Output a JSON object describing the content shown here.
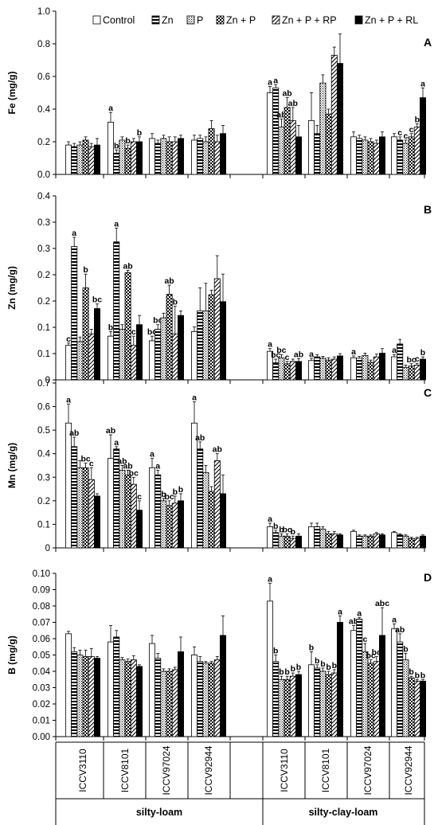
{
  "legend": [
    {
      "name": "Control",
      "pattern": "white"
    },
    {
      "name": "Zn",
      "pattern": "hstripe"
    },
    {
      "name": "P",
      "pattern": "dots"
    },
    {
      "name": "Zn + P",
      "pattern": "checker"
    },
    {
      "name": "Zn + P + RP",
      "pattern": "diag"
    },
    {
      "name": "Zn + P + RL",
      "pattern": "black"
    }
  ],
  "genotypes": [
    "ICCV3110",
    "ICCV8101",
    "ICCV97024",
    "ICCV92944"
  ],
  "soils": [
    "silty-loam",
    "silty-clay-loam"
  ],
  "chart_data": [
    {
      "type": "bar",
      "panel": "A",
      "ylabel": "Fe (mg/g)",
      "ylim": [
        0,
        1.0
      ],
      "yticks": [
        "0.0",
        "0.2",
        "0.4",
        "0.6",
        "0.8",
        "1.0"
      ],
      "series": [
        {
          "name": "Control",
          "values": [
            0.18,
            0.32,
            0.22,
            0.21,
            0.5,
            0.33,
            0.23,
            0.23
          ],
          "err": [
            0.02,
            0.06,
            0.03,
            0.03,
            0.04,
            0.17,
            0.03,
            0.02
          ],
          "labels": [
            "",
            "a",
            "",
            "",
            "a",
            "",
            "",
            ""
          ]
        },
        {
          "name": "Zn",
          "values": [
            0.17,
            0.13,
            0.19,
            0.22,
            0.53,
            0.25,
            0.22,
            0.21
          ],
          "err": [
            0.02,
            0.02,
            0.02,
            0.02,
            0.02,
            0.05,
            0.02,
            0.02
          ],
          "labels": [
            "",
            "b",
            "",
            "",
            "a",
            "",
            "",
            "c"
          ]
        },
        {
          "name": "P",
          "values": [
            0.18,
            0.21,
            0.22,
            0.2,
            0.29,
            0.56,
            0.21,
            0.19
          ],
          "err": [
            0.02,
            0.02,
            0.02,
            0.03,
            0.05,
            0.05,
            0.02,
            0.02
          ],
          "labels": [
            "",
            "",
            "",
            "",
            "ab",
            "",
            "",
            "c"
          ]
        },
        {
          "name": "Zn + P",
          "values": [
            0.21,
            0.16,
            0.2,
            0.28,
            0.41,
            0.37,
            0.2,
            0.23
          ],
          "err": [
            0.02,
            0.02,
            0.03,
            0.05,
            0.06,
            0.03,
            0.02,
            0.02
          ],
          "labels": [
            "",
            "b",
            "",
            "",
            "ab",
            "",
            "",
            "c"
          ]
        },
        {
          "name": "Zn + P + RP",
          "values": [
            0.17,
            0.2,
            0.2,
            0.2,
            0.33,
            0.73,
            0.19,
            0.29
          ],
          "err": [
            0.02,
            0.02,
            0.03,
            0.04,
            0.08,
            0.05,
            0.02,
            0.02
          ],
          "labels": [
            "",
            "",
            "",
            "",
            "ab",
            "",
            "",
            "b"
          ]
        },
        {
          "name": "Zn + P + RL",
          "values": [
            0.18,
            0.2,
            0.22,
            0.25,
            0.23,
            0.68,
            0.23,
            0.47
          ],
          "err": [
            0.04,
            0.03,
            0.02,
            0.05,
            0.07,
            0.18,
            0.03,
            0.06
          ],
          "labels": [
            "",
            "b",
            "",
            "",
            "",
            "",
            "",
            "a"
          ]
        }
      ]
    },
    {
      "type": "bar",
      "panel": "B",
      "ylabel": "Zn (mg/g)",
      "ylim": [
        0,
        0.4
      ],
      "yticks": [
        "0",
        "0.1",
        "0.1",
        "0.2",
        "0.2",
        "0.3",
        "0.3",
        "0.4"
      ],
      "series": [
        {
          "name": "Control",
          "values": [
            0.075,
            0.095,
            0.085,
            0.105,
            0.062,
            0.042,
            0.048,
            0.05
          ],
          "err": [
            0.005,
            0.01,
            0.01,
            0.01,
            0.006,
            0.005,
            0.004,
            0.005
          ],
          "labels": [
            "c",
            "b",
            "bc",
            "",
            "a",
            "a",
            "a",
            "a"
          ]
        },
        {
          "name": "Zn",
          "values": [
            0.29,
            0.3,
            0.11,
            0.15,
            0.037,
            0.05,
            0.047,
            0.078
          ],
          "err": [
            0.02,
            0.03,
            0.01,
            0.05,
            0.008,
            0.005,
            0.004,
            0.01
          ],
          "labels": [
            "a",
            "a",
            "bc",
            "",
            "bc",
            "",
            "",
            ""
          ]
        },
        {
          "name": "P",
          "values": [
            0.083,
            0.11,
            0.135,
            0.15,
            0.048,
            0.047,
            0.053,
            0.027
          ],
          "err": [
            0.01,
            0.01,
            0.01,
            0.06,
            0.007,
            0.004,
            0.005,
            0.005
          ],
          "labels": [
            "",
            "",
            "",
            "",
            "bc",
            "",
            "",
            ""
          ]
        },
        {
          "name": "Zn + P",
          "values": [
            0.2,
            0.233,
            0.186,
            0.185,
            0.035,
            0.043,
            0.038,
            0.03
          ],
          "err": [
            0.03,
            0.005,
            0.02,
            0.01,
            0.005,
            0.005,
            0.005,
            0.005
          ],
          "labels": [
            "b",
            "ab",
            "ab",
            "",
            "c",
            "",
            "",
            "bc"
          ]
        },
        {
          "name": "Zn + P + RP",
          "values": [
            0.1,
            0.075,
            0.1,
            0.22,
            0.04,
            0.045,
            0.05,
            0.032
          ],
          "err": [
            0.01,
            0.02,
            0.06,
            0.05,
            0.005,
            0.005,
            0.006,
            0.004
          ],
          "labels": [
            "",
            "c",
            "b",
            "",
            "",
            "",
            "",
            "c"
          ]
        },
        {
          "name": "Zn + P + RL",
          "values": [
            0.155,
            0.12,
            0.14,
            0.17,
            0.04,
            0.052,
            0.058,
            0.045
          ],
          "err": [
            0.01,
            0.02,
            0.01,
            0.06,
            0.006,
            0.005,
            0.01,
            0.005
          ],
          "labels": [
            "bc",
            "",
            "",
            "",
            "ab",
            "",
            "",
            "b"
          ]
        }
      ]
    },
    {
      "type": "bar",
      "panel": "C",
      "ylabel": "Mn (mg/g)",
      "ylim": [
        0,
        0.7
      ],
      "yticks": [
        "0",
        "0.1",
        "0.2",
        "0.3",
        "0.4",
        "0.5",
        "0.6",
        "0.7"
      ],
      "series": [
        {
          "name": "Control",
          "values": [
            0.53,
            0.38,
            0.34,
            0.53,
            0.09,
            0.09,
            0.07,
            0.065
          ],
          "err": [
            0.08,
            0.1,
            0.04,
            0.09,
            0.015,
            0.015,
            0.005,
            0.005
          ],
          "labels": [
            "a",
            "ab",
            "a",
            "a",
            "a",
            "",
            "",
            ""
          ]
        },
        {
          "name": "Zn",
          "values": [
            0.43,
            0.42,
            0.31,
            0.42,
            0.065,
            0.09,
            0.05,
            0.055
          ],
          "err": [
            0.04,
            0.01,
            0.02,
            0.03,
            0.01,
            0.015,
            0.005,
            0.005
          ],
          "labels": [
            "ab",
            "a",
            "a",
            "ab",
            "b",
            "",
            "",
            ""
          ]
        },
        {
          "name": "P",
          "values": [
            0.34,
            0.33,
            0.2,
            0.32,
            0.05,
            0.08,
            0.05,
            0.05
          ],
          "err": [
            0.03,
            0.02,
            0.01,
            0.03,
            0.01,
            0.01,
            0.005,
            0.005
          ],
          "labels": [
            "",
            "ab",
            "b",
            "",
            "b",
            "",
            "",
            ""
          ]
        },
        {
          "name": "Zn + P",
          "values": [
            0.34,
            0.31,
            0.18,
            0.24,
            0.05,
            0.06,
            0.05,
            0.04
          ],
          "err": [
            0.02,
            0.02,
            0.02,
            0.02,
            0.01,
            0.01,
            0.005,
            0.005
          ],
          "labels": [
            "bc",
            "ab",
            "bc",
            "",
            "bc",
            "",
            "",
            ""
          ]
        },
        {
          "name": "Zn + P + RP",
          "values": [
            0.29,
            0.27,
            0.19,
            0.37,
            0.04,
            0.06,
            0.06,
            0.04
          ],
          "err": [
            0.05,
            0.03,
            0.03,
            0.03,
            0.01,
            0.01,
            0.005,
            0.005
          ],
          "labels": [
            "c",
            "bc",
            "b",
            "ab",
            "b",
            "",
            "",
            ""
          ]
        },
        {
          "name": "Zn + P + RL",
          "values": [
            0.22,
            0.16,
            0.2,
            0.23,
            0.05,
            0.055,
            0.055,
            0.05
          ],
          "err": [
            0.01,
            0.04,
            0.03,
            0.08,
            0.01,
            0.005,
            0.005,
            0.005
          ],
          "labels": [
            "",
            "c",
            "b",
            "",
            "",
            "",
            "",
            ""
          ]
        }
      ]
    },
    {
      "type": "bar",
      "panel": "D",
      "ylabel": "B (mg/g)",
      "ylim": [
        0,
        0.1
      ],
      "yticks": [
        "0.00",
        "0.01",
        "0.02",
        "0.03",
        "0.04",
        "0.05",
        "0.06",
        "0.07",
        "0.08",
        "0.09",
        "0.10"
      ],
      "series": [
        {
          "name": "Control",
          "values": [
            0.063,
            0.058,
            0.057,
            0.05,
            0.083,
            0.044,
            0.065,
            0.066
          ],
          "err": [
            0.0015,
            0.01,
            0.005,
            0.005,
            0.011,
            0.008,
            0.003,
            0.003
          ],
          "labels": [
            "",
            "",
            "",
            "",
            "a",
            "b",
            "ab",
            "a"
          ]
        },
        {
          "name": "Zn",
          "values": [
            0.052,
            0.061,
            0.048,
            0.046,
            0.046,
            0.042,
            0.072,
            0.058
          ],
          "err": [
            0.0025,
            0.004,
            0.003,
            0.003,
            0.004,
            0.002,
            0.001,
            0.005
          ],
          "labels": [
            "",
            "",
            "",
            "",
            "b",
            "b",
            "a",
            "ab"
          ]
        },
        {
          "name": "P",
          "values": [
            0.05,
            0.047,
            0.04,
            0.045,
            0.035,
            0.04,
            0.052,
            0.047
          ],
          "err": [
            0.003,
            0.0015,
            0.0015,
            0.001,
            0.002,
            0.002,
            0.005,
            0.004
          ],
          "labels": [
            "",
            "",
            "",
            "",
            "b",
            "b",
            "c",
            "b"
          ]
        },
        {
          "name": "Zn + P",
          "values": [
            0.049,
            0.046,
            0.04,
            0.045,
            0.035,
            0.038,
            0.045,
            0.036
          ],
          "err": [
            0.004,
            0.0015,
            0.0015,
            0.001,
            0.002,
            0.002,
            0.002,
            0.001
          ],
          "labels": [
            "",
            "",
            "",
            "",
            "b",
            "b",
            "bc",
            "b"
          ]
        },
        {
          "name": "Zn + P + RP",
          "values": [
            0.049,
            0.047,
            0.041,
            0.047,
            0.037,
            0.039,
            0.046,
            0.034
          ],
          "err": [
            0.005,
            0.0025,
            0.0015,
            0.002,
            0.002,
            0.002,
            0.003,
            0.001
          ],
          "labels": [
            "",
            "",
            "",
            "",
            "b",
            "b",
            "bc",
            "b"
          ]
        },
        {
          "name": "Zn + P + RL",
          "values": [
            0.048,
            0.043,
            0.052,
            0.062,
            0.038,
            0.07,
            0.062,
            0.034
          ],
          "err": [
            0.001,
            0.001,
            0.009,
            0.012,
            0.002,
            0.004,
            0.017,
            0.001
          ],
          "labels": [
            "",
            "",
            "",
            "",
            "b",
            "a",
            "abc",
            "b"
          ]
        }
      ]
    }
  ]
}
